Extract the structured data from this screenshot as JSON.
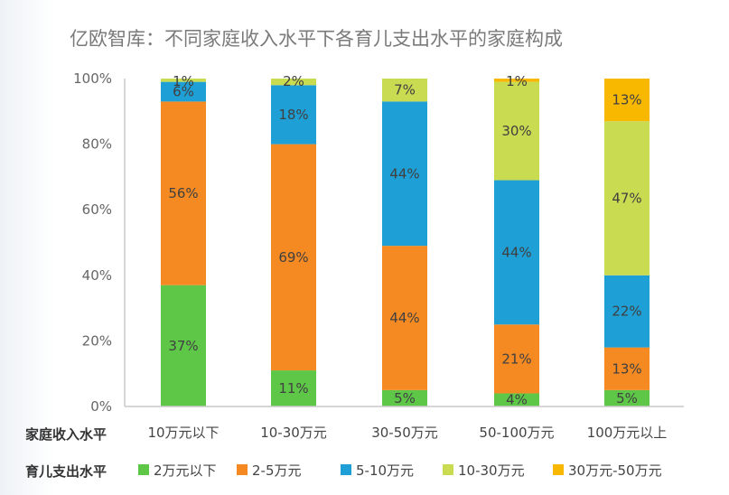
{
  "chart_data": {
    "type": "bar",
    "stacked": true,
    "title": "亿欧智库：不同家庭收入水平下各育儿支出水平的家庭构成",
    "xlabel": "家庭收入水平",
    "legend_title": "育儿支出水平",
    "ylim": [
      0,
      100
    ],
    "yticks": [
      "0%",
      "20%",
      "40%",
      "60%",
      "80%",
      "100%"
    ],
    "categories": [
      "10万元以下",
      "10-30万元",
      "30-50万元",
      "50-100万元",
      "100万元以上"
    ],
    "series": [
      {
        "name": "2万元以下",
        "color": "#5ec748",
        "values": [
          37,
          11,
          5,
          4,
          5
        ],
        "labels": [
          "37%",
          "11%",
          "5%",
          "4%",
          "5%"
        ]
      },
      {
        "name": "2-5万元",
        "color": "#f58a22",
        "values": [
          56,
          69,
          44,
          21,
          13
        ],
        "labels": [
          "56%",
          "69%",
          "44%",
          "21%",
          "13%"
        ]
      },
      {
        "name": "5-10万元",
        "color": "#1e9fd6",
        "values": [
          6,
          18,
          44,
          44,
          22
        ],
        "labels": [
          "6%",
          "18%",
          "44%",
          "44%",
          "22%"
        ]
      },
      {
        "name": "10-30万元",
        "color": "#c9db51",
        "values": [
          1,
          2,
          7,
          30,
          47
        ],
        "labels": [
          "1%",
          "2%",
          "7%",
          "30%",
          "47%"
        ]
      },
      {
        "name": "30万元-50万元",
        "color": "#f8b800",
        "values": [
          0,
          0,
          0,
          1,
          13
        ],
        "labels": [
          "",
          "",
          "",
          "1%",
          "13%"
        ]
      }
    ],
    "grid": false,
    "legend_position": "bottom"
  }
}
